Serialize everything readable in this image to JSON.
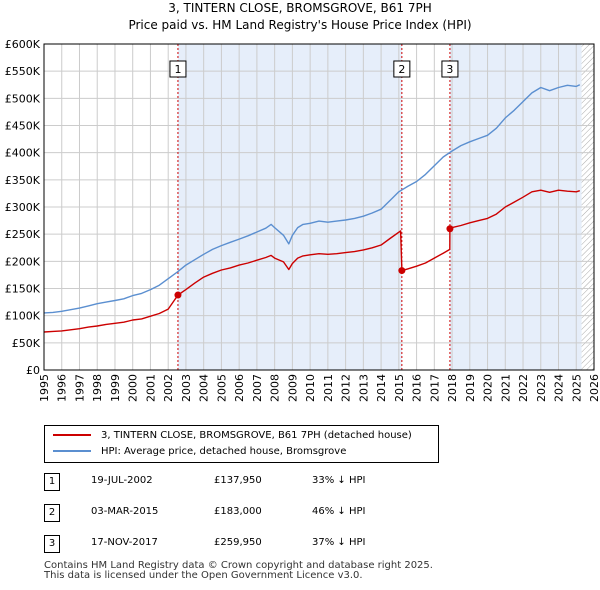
{
  "title_line1": "3, TINTERN CLOSE, BROMSGROVE, B61 7PH",
  "title_line2": "Price paid vs. HM Land Registry's House Price Index (HPI)",
  "legend": {
    "property_label": "3, TINTERN CLOSE, BROMSGROVE, B61 7PH (detached house)",
    "hpi_label": "HPI: Average price, detached house, Bromsgrove"
  },
  "colors": {
    "property": "#cc0000",
    "hpi": "#5b8fd0",
    "shade": "#e6eefa",
    "grid": "#cccccc",
    "hatch": "#aaaaaa"
  },
  "transactions": [
    {
      "num": "1",
      "date": "19-JUL-2002",
      "price": "£137,950",
      "hpi_diff": "33% ↓ HPI",
      "year": 2002.55,
      "value": 137950
    },
    {
      "num": "2",
      "date": "03-MAR-2015",
      "price": "£183,000",
      "hpi_diff": "46% ↓ HPI",
      "year": 2015.17,
      "value": 183000
    },
    {
      "num": "3",
      "date": "17-NOV-2017",
      "price": "£259,950",
      "hpi_diff": "37% ↓ HPI",
      "year": 2017.88,
      "value": 259950
    }
  ],
  "footer_line1": "Contains HM Land Registry data © Crown copyright and database right 2025.",
  "footer_line2": "This data is licensed under the Open Government Licence v3.0.",
  "chart_data": {
    "type": "line",
    "title": "3, TINTERN CLOSE, BROMSGROVE, B61 7PH — Price paid vs. HM Land Registry's House Price Index (HPI)",
    "xlabel": "",
    "ylabel": "",
    "xlim": [
      1995,
      2026
    ],
    "ylim": [
      0,
      600000
    ],
    "x_ticks": [
      1995,
      1996,
      1997,
      1998,
      1999,
      2000,
      2001,
      2002,
      2003,
      2004,
      2005,
      2006,
      2007,
      2008,
      2009,
      2010,
      2011,
      2012,
      2013,
      2014,
      2015,
      2016,
      2017,
      2018,
      2019,
      2020,
      2021,
      2022,
      2023,
      2024,
      2025,
      2026
    ],
    "y_ticks": [
      0,
      50000,
      100000,
      150000,
      200000,
      250000,
      300000,
      350000,
      400000,
      450000,
      500000,
      550000,
      600000
    ],
    "y_tick_labels": [
      "£0",
      "£50K",
      "£100K",
      "£150K",
      "£200K",
      "£250K",
      "£300K",
      "£350K",
      "£400K",
      "£450K",
      "£500K",
      "£550K",
      "£600K"
    ],
    "shaded_ranges": [
      [
        2002.55,
        2015.17
      ],
      [
        2017.88,
        2025.3
      ]
    ],
    "hatched_range": [
      2025.3,
      2026
    ],
    "grid": true,
    "series": [
      {
        "name": "HPI: Average price, detached house, Bromsgrove",
        "x": [
          1995,
          1995.5,
          1996,
          1996.5,
          1997,
          1997.5,
          1998,
          1998.5,
          1999,
          1999.5,
          2000,
          2000.5,
          2001,
          2001.5,
          2002,
          2002.5,
          2003,
          2003.5,
          2004,
          2004.5,
          2005,
          2005.5,
          2006,
          2006.5,
          2007,
          2007.5,
          2007.8,
          2008,
          2008.5,
          2008.8,
          2009,
          2009.3,
          2009.6,
          2010,
          2010.5,
          2011,
          2011.5,
          2012,
          2012.5,
          2013,
          2013.5,
          2014,
          2014.5,
          2015,
          2015.5,
          2016,
          2016.5,
          2017,
          2017.5,
          2018,
          2018.5,
          2019,
          2019.5,
          2020,
          2020.5,
          2021,
          2021.5,
          2022,
          2022.5,
          2023,
          2023.5,
          2024,
          2024.5,
          2025,
          2025.2
        ],
        "values": [
          105000,
          106000,
          108000,
          111000,
          114000,
          118000,
          122000,
          125000,
          128000,
          131000,
          137000,
          141000,
          148000,
          156000,
          168000,
          180000,
          193000,
          203000,
          213000,
          222000,
          229000,
          235000,
          241000,
          247000,
          254000,
          261000,
          268000,
          262000,
          248000,
          232000,
          248000,
          262000,
          268000,
          270000,
          274000,
          272000,
          274000,
          276000,
          279000,
          283000,
          289000,
          296000,
          312000,
          328000,
          338000,
          347000,
          360000,
          376000,
          392000,
          403000,
          413000,
          420000,
          426000,
          432000,
          445000,
          464000,
          478000,
          494000,
          510000,
          520000,
          514000,
          520000,
          524000,
          522000,
          525000
        ]
      },
      {
        "name": "3, TINTERN CLOSE, BROMSGROVE, B61 7PH (detached house)",
        "x": [
          1995,
          1995.5,
          1996,
          1996.5,
          1997,
          1997.5,
          1998,
          1998.5,
          1999,
          1999.5,
          2000,
          2000.5,
          2001,
          2001.5,
          2002,
          2002.55,
          2003,
          2003.5,
          2004,
          2004.5,
          2005,
          2005.5,
          2006,
          2006.5,
          2007,
          2007.5,
          2007.8,
          2008,
          2008.5,
          2008.8,
          2009,
          2009.3,
          2009.6,
          2010,
          2010.5,
          2011,
          2011.5,
          2012,
          2012.5,
          2013,
          2013.5,
          2014,
          2014.5,
          2015.1,
          2015.17,
          2015.5,
          2016,
          2016.5,
          2017,
          2017.5,
          2017.87,
          2017.88,
          2018,
          2018.5,
          2019,
          2019.5,
          2020,
          2020.5,
          2021,
          2021.5,
          2022,
          2022.5,
          2023,
          2023.5,
          2024,
          2024.5,
          2025,
          2025.2
        ],
        "values": [
          70000,
          71000,
          72000,
          74000,
          76000,
          79000,
          81000,
          84000,
          86000,
          88000,
          92000,
          94000,
          99000,
          104000,
          112000,
          137950,
          148000,
          160000,
          171000,
          178000,
          184000,
          188000,
          193000,
          197000,
          202000,
          207000,
          211000,
          206000,
          199000,
          185000,
          196000,
          206000,
          210000,
          212000,
          214000,
          213000,
          214000,
          216000,
          218000,
          221000,
          225000,
          230000,
          242000,
          256000,
          183000,
          186000,
          191000,
          197000,
          206000,
          215000,
          222000,
          259950,
          262000,
          266000,
          271000,
          275000,
          279000,
          287000,
          300000,
          309000,
          318000,
          328000,
          331000,
          327000,
          331000,
          329000,
          328000,
          330000
        ]
      }
    ]
  }
}
